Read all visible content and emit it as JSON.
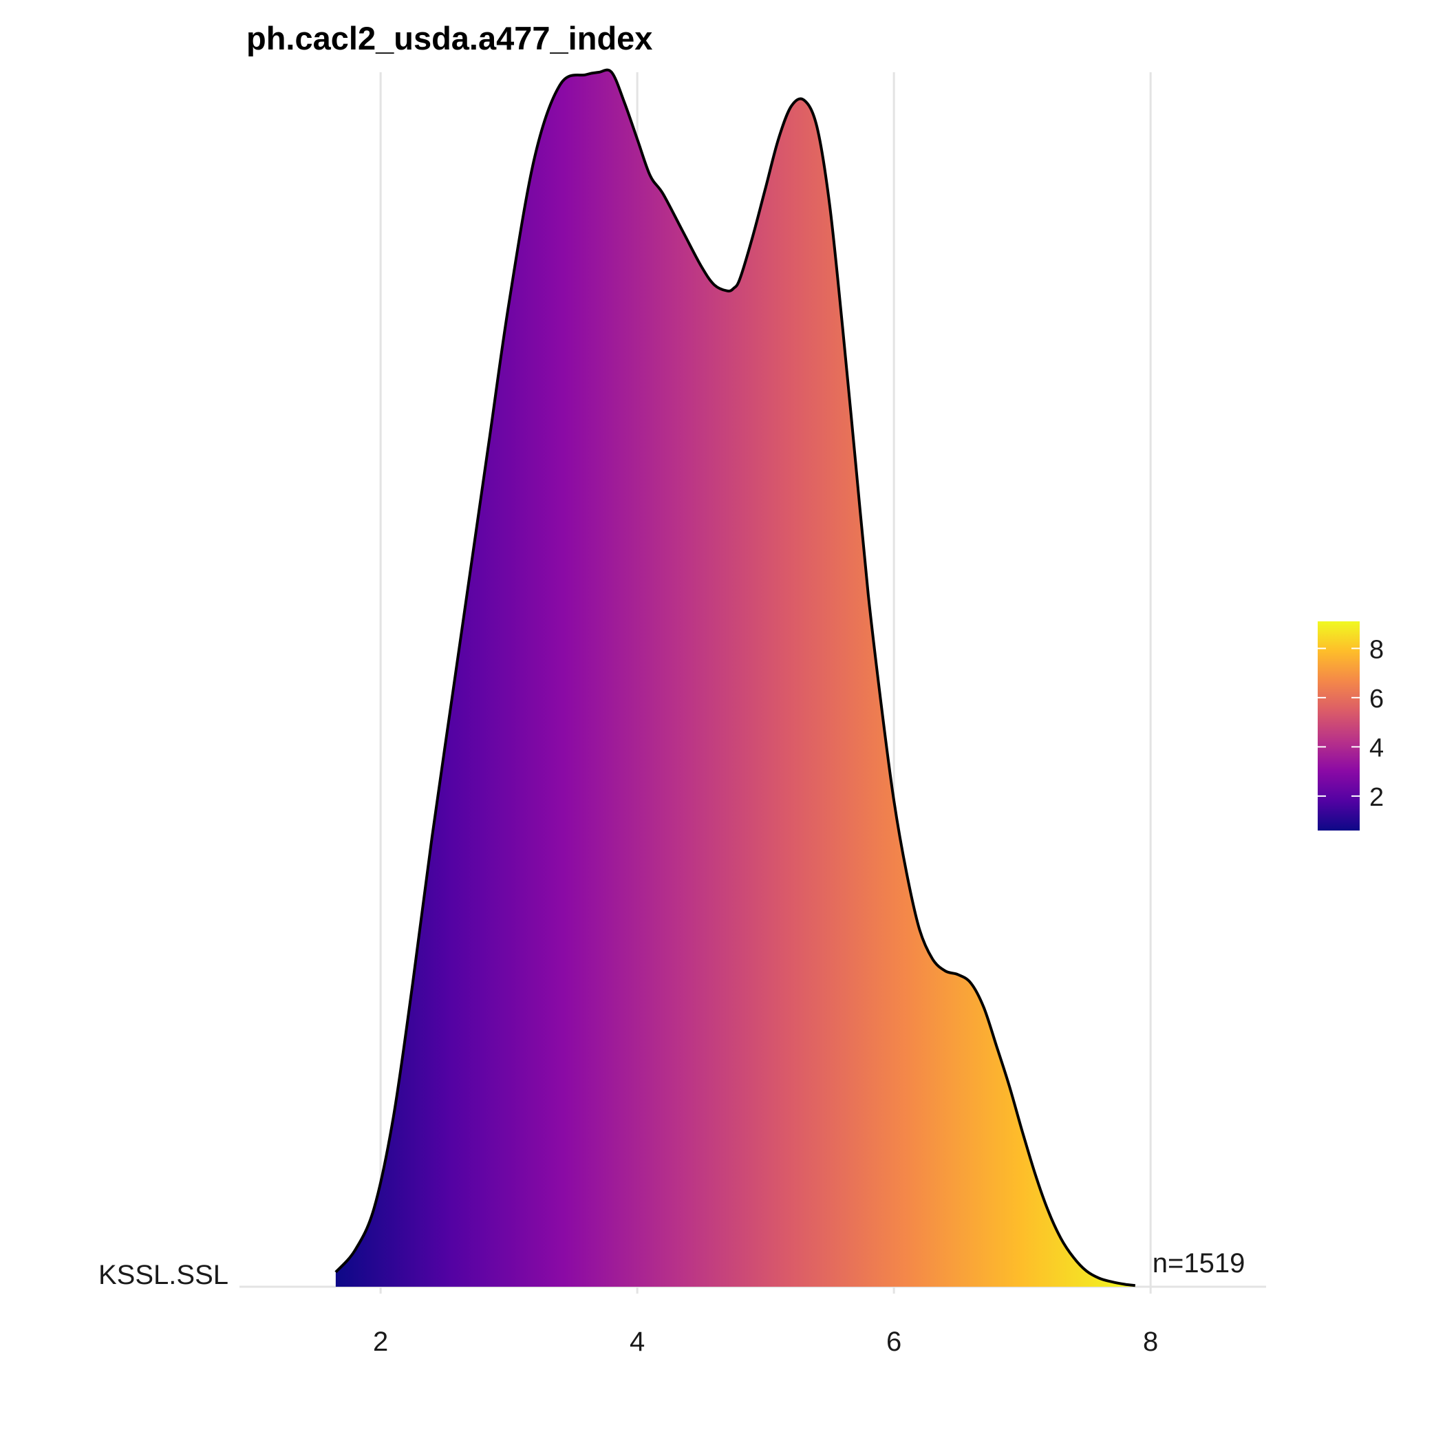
{
  "chart_data": {
    "type": "area",
    "subtype": "ridgeline-density",
    "title": "ph.cacl2_usda.a477_index",
    "xlabel": "",
    "ylabel": "",
    "xlim": [
      0.9,
      8.9
    ],
    "x_ticks": [
      2,
      4,
      6,
      8
    ],
    "x_tick_labels": [
      "2",
      "4",
      "6",
      "8"
    ],
    "grid": "vertical-major",
    "categories": [
      "KSSL.SSL"
    ],
    "annotations": [
      {
        "category": "KSSL.SSL",
        "text": "n=1519"
      }
    ],
    "series": [
      {
        "name": "KSSL.SSL",
        "x": [
          1.65,
          1.8,
          1.95,
          2.1,
          2.25,
          2.4,
          2.55,
          2.7,
          2.85,
          3.0,
          3.2,
          3.4,
          3.6,
          3.7,
          3.8,
          3.9,
          4.0,
          4.1,
          4.2,
          4.35,
          4.5,
          4.6,
          4.7,
          4.75,
          4.8,
          4.9,
          5.0,
          5.1,
          5.2,
          5.3,
          5.4,
          5.5,
          5.6,
          5.7,
          5.8,
          5.9,
          6.0,
          6.1,
          6.2,
          6.3,
          6.4,
          6.5,
          6.6,
          6.7,
          6.8,
          6.9,
          7.0,
          7.1,
          7.2,
          7.3,
          7.4,
          7.5,
          7.6,
          7.7,
          7.8,
          7.88
        ],
        "density": [
          0.012,
          0.03,
          0.065,
          0.14,
          0.25,
          0.37,
          0.48,
          0.59,
          0.7,
          0.81,
          0.93,
          0.99,
          0.998,
          1.0,
          1.0,
          0.975,
          0.945,
          0.915,
          0.9,
          0.87,
          0.84,
          0.825,
          0.82,
          0.822,
          0.83,
          0.865,
          0.905,
          0.945,
          0.972,
          0.977,
          0.955,
          0.89,
          0.79,
          0.68,
          0.57,
          0.48,
          0.4,
          0.34,
          0.294,
          0.27,
          0.26,
          0.257,
          0.25,
          0.23,
          0.198,
          0.165,
          0.128,
          0.093,
          0.063,
          0.04,
          0.024,
          0.013,
          0.007,
          0.004,
          0.002,
          0.001
        ]
      }
    ],
    "fill_gradient_stops": [
      "#0d0887",
      "#5302a3",
      "#8b0aa5",
      "#b83289",
      "#db5c68",
      "#f48849",
      "#febd2a",
      "#f0f921"
    ],
    "outline_color": "#000000",
    "legend": {
      "position": "right",
      "range": [
        0.6,
        9.1
      ],
      "ticks": [
        2,
        4,
        6,
        8
      ],
      "tick_labels": [
        "2",
        "4",
        "6",
        "8"
      ],
      "colors": [
        "#0d0887",
        "#5302a3",
        "#8b0aa5",
        "#b83289",
        "#db5c68",
        "#f48849",
        "#febd2a",
        "#f0f921"
      ]
    }
  }
}
